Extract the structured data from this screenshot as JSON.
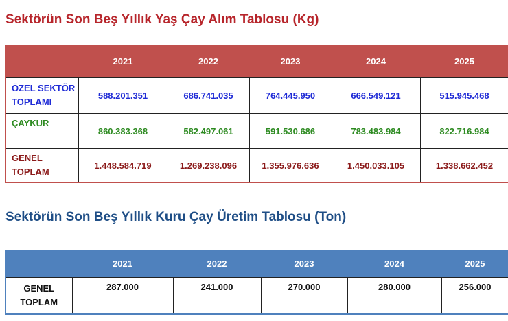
{
  "table1": {
    "title": "Sektörün Son Beş Yıllık Yaş Çay Alım Tablosu (Kg)",
    "years": [
      "2021",
      "2022",
      "2023",
      "2024",
      "2025"
    ],
    "rows": [
      {
        "label_line1": "ÖZEL SEKTÖR",
        "label_line2": "TOPLAMI",
        "values": [
          "588.201.351",
          "686.741.035",
          "764.445.950",
          "666.549.121",
          "515.945.468"
        ],
        "color": "#1f2bd6"
      },
      {
        "label_line1": "ÇAYKUR",
        "label_line2": "",
        "values": [
          "860.383.368",
          "582.497.061",
          "591.530.686",
          "783.483.984",
          "822.716.984"
        ],
        "color": "#2e8b22"
      },
      {
        "label_line1": "GENEL",
        "label_line2": "TOPLAM",
        "values": [
          "1.448.584.719",
          "1.269.238.096",
          "1.355.976.636",
          "1.450.033.105",
          "1.338.662.452"
        ],
        "color": "#8b1a1a"
      }
    ],
    "header_color": "#c0504d",
    "title_color": "#b7252b"
  },
  "table2": {
    "title": "Sektörün Son Beş Yıllık Kuru Çay Üretim Tablosu (Ton)",
    "years": [
      "2021",
      "2022",
      "2023",
      "2024",
      "2025"
    ],
    "rows": [
      {
        "label_line1": "GENEL",
        "label_line2": "TOPLAM",
        "values": [
          "287.000",
          "241.000",
          "270.000",
          "280.000",
          "256.000"
        ]
      }
    ],
    "header_color": "#4f81bd",
    "title_color": "#1f4e86"
  }
}
